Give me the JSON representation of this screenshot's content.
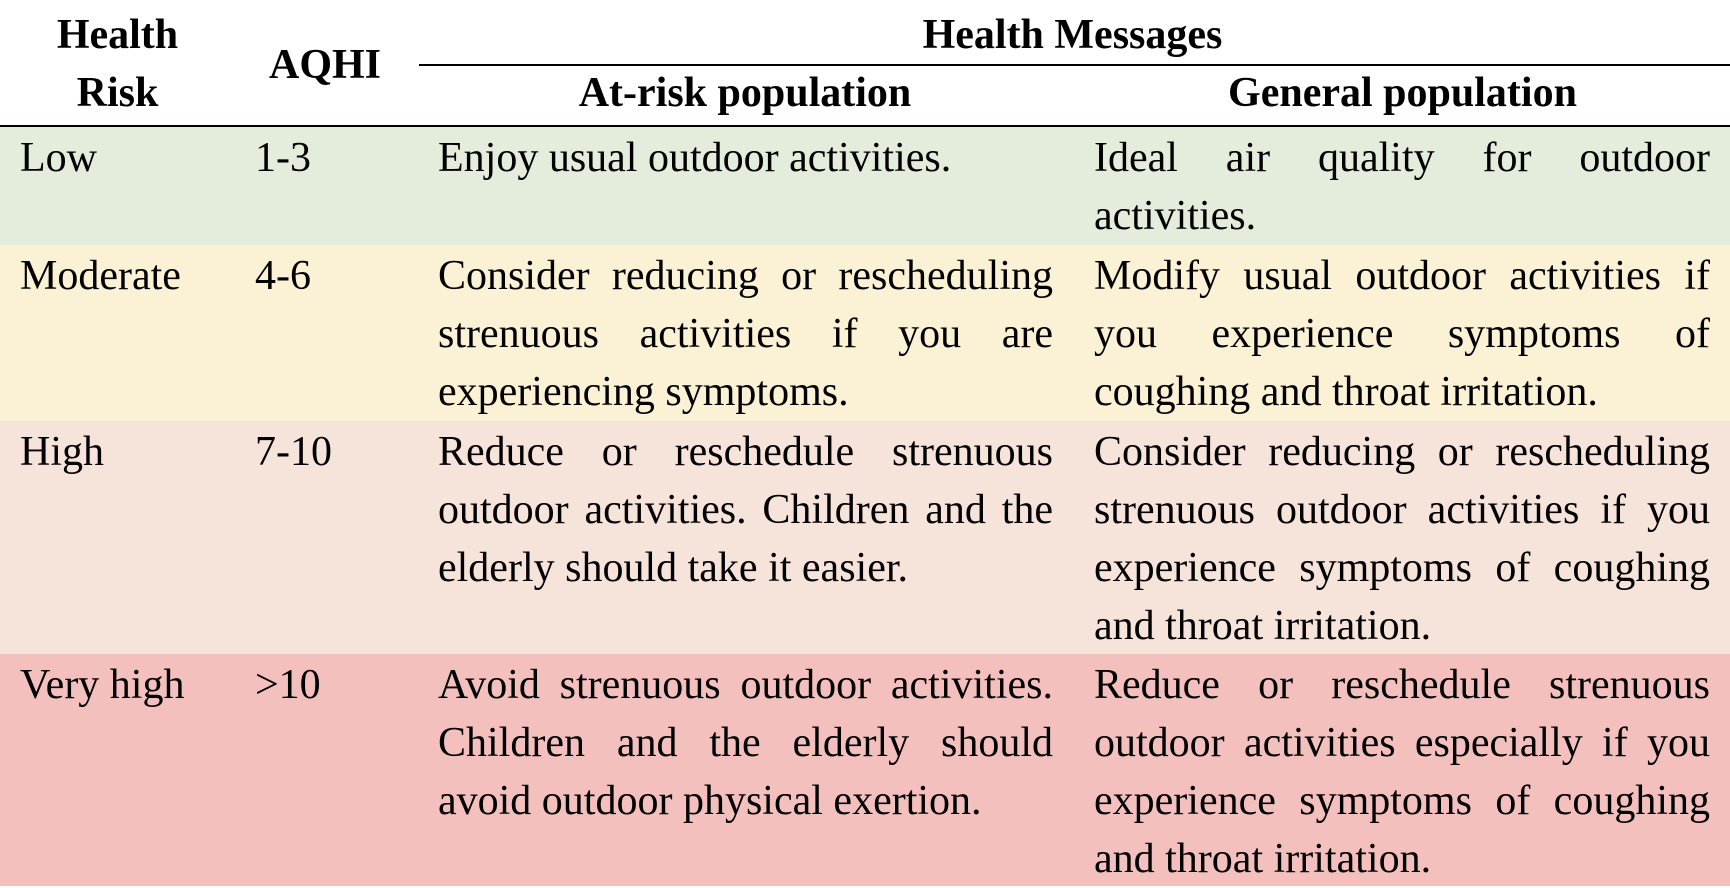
{
  "header": {
    "health_risk": "Health\nRisk",
    "aqhi": "AQHI",
    "health_messages": "Health Messages",
    "at_risk": "At-risk population",
    "general": "General population"
  },
  "rows": [
    {
      "color": "#e4ecdb",
      "risk": "Low",
      "aqhi": "1-3",
      "at_risk": "Enjoy usual outdoor activities.",
      "general": "Ideal air quality for outdoor activities."
    },
    {
      "color": "#fbf2d5",
      "risk": "Moderate",
      "aqhi": "4-6",
      "at_risk": "Consider reducing or rescheduling strenuous activities if you are experiencing symptoms.",
      "general": "Modify usual outdoor activities if you experience symptoms of coughing and throat irritation."
    },
    {
      "color": "#f6e4da",
      "risk": "High",
      "aqhi": "7-10",
      "at_risk": "Reduce or reschedule strenuous outdoor activities. Children and the elderly should take it easier.",
      "general": "Consider reducing or rescheduling strenuous outdoor activities if you experience symptoms of coughing and throat irritation."
    },
    {
      "color": "#f4c0be",
      "risk": "Very high",
      "aqhi": ">10",
      "at_risk": "Avoid strenuous outdoor activities. Children and the elderly should avoid outdoor physical exertion.",
      "general": "Reduce or reschedule strenuous outdoor activities especially if you experience symptoms of coughing and throat irritation."
    }
  ]
}
